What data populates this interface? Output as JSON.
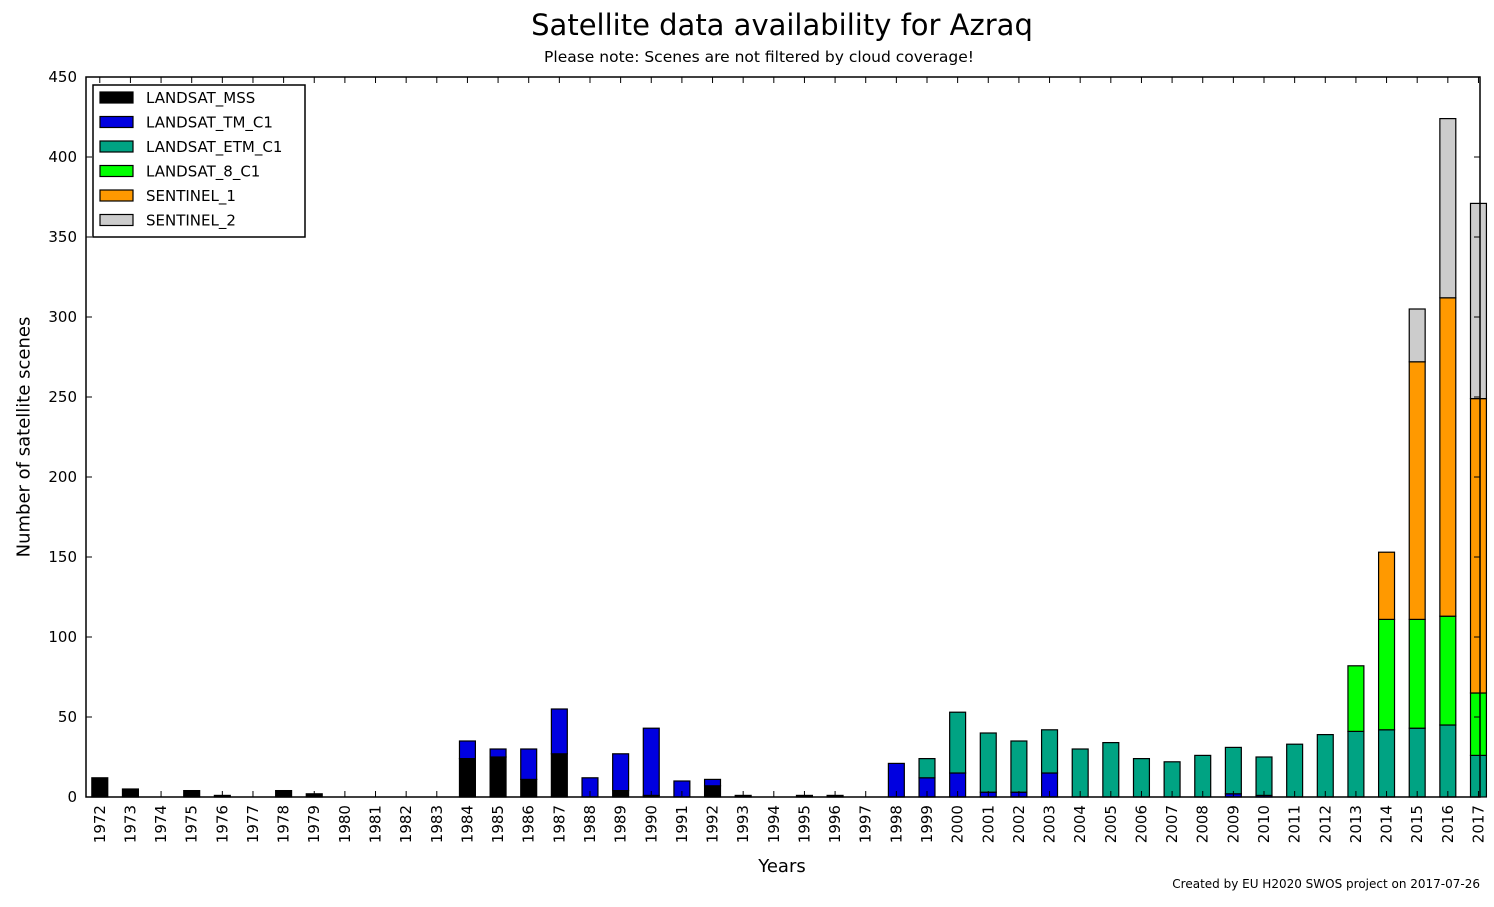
{
  "title": "Satellite data availability for Azraq",
  "subtitle": "Please note: Scenes are not filtered by cloud coverage!",
  "credit": "Created by EU H2020 SWOS project on 2017-07-26",
  "chart_data": {
    "type": "bar",
    "stacked": true,
    "title": "Satellite data availability for Azraq",
    "subtitle": "Please note: Scenes are not filtered by cloud coverage!",
    "xlabel": "Years",
    "ylabel": "Number of satellite scenes",
    "ylim": [
      0,
      450
    ],
    "yticks": [
      0,
      50,
      100,
      150,
      200,
      250,
      300,
      350,
      400,
      450
    ],
    "grid": false,
    "legend_position": "top-left",
    "categories": [
      "1972",
      "1973",
      "1974",
      "1975",
      "1976",
      "1977",
      "1978",
      "1979",
      "1980",
      "1981",
      "1982",
      "1983",
      "1984",
      "1985",
      "1986",
      "1987",
      "1988",
      "1989",
      "1990",
      "1991",
      "1992",
      "1993",
      "1994",
      "1995",
      "1996",
      "1997",
      "1998",
      "1999",
      "2000",
      "2001",
      "2002",
      "2003",
      "2004",
      "2005",
      "2006",
      "2007",
      "2008",
      "2009",
      "2010",
      "2011",
      "2012",
      "2013",
      "2014",
      "2015",
      "2016",
      "2017"
    ],
    "series": [
      {
        "name": "LANDSAT_MSS",
        "color": "#000000",
        "values": [
          12,
          5,
          0,
          4,
          1,
          0,
          4,
          2,
          0,
          0,
          0,
          0,
          24,
          25,
          11,
          27,
          0,
          4,
          1,
          0,
          7,
          1,
          0,
          1,
          1,
          0,
          0,
          0,
          0,
          0,
          0,
          0,
          0,
          0,
          0,
          0,
          0,
          0,
          0,
          0,
          0,
          0,
          0,
          0,
          0,
          0
        ]
      },
      {
        "name": "LANDSAT_TM_C1",
        "color": "#0000e0",
        "values": [
          0,
          0,
          0,
          0,
          0,
          0,
          0,
          0,
          0,
          0,
          0,
          0,
          11,
          5,
          19,
          28,
          12,
          23,
          42,
          10,
          4,
          0,
          0,
          0,
          0,
          0,
          21,
          12,
          15,
          3,
          3,
          15,
          0,
          0,
          0,
          0,
          0,
          2,
          1,
          0,
          0,
          0,
          0,
          0,
          0,
          0
        ]
      },
      {
        "name": "LANDSAT_ETM_C1",
        "color": "#00a383",
        "values": [
          0,
          0,
          0,
          0,
          0,
          0,
          0,
          0,
          0,
          0,
          0,
          0,
          0,
          0,
          0,
          0,
          0,
          0,
          0,
          0,
          0,
          0,
          0,
          0,
          0,
          0,
          0,
          12,
          38,
          37,
          32,
          27,
          30,
          34,
          24,
          22,
          26,
          29,
          24,
          33,
          39,
          41,
          42,
          43,
          45,
          26
        ]
      },
      {
        "name": "LANDSAT_8_C1",
        "color": "#00ff00",
        "values": [
          0,
          0,
          0,
          0,
          0,
          0,
          0,
          0,
          0,
          0,
          0,
          0,
          0,
          0,
          0,
          0,
          0,
          0,
          0,
          0,
          0,
          0,
          0,
          0,
          0,
          0,
          0,
          0,
          0,
          0,
          0,
          0,
          0,
          0,
          0,
          0,
          0,
          0,
          0,
          0,
          0,
          41,
          69,
          68,
          68,
          39
        ]
      },
      {
        "name": "SENTINEL_1",
        "color": "#ff9900",
        "values": [
          0,
          0,
          0,
          0,
          0,
          0,
          0,
          0,
          0,
          0,
          0,
          0,
          0,
          0,
          0,
          0,
          0,
          0,
          0,
          0,
          0,
          0,
          0,
          0,
          0,
          0,
          0,
          0,
          0,
          0,
          0,
          0,
          0,
          0,
          0,
          0,
          0,
          0,
          0,
          0,
          0,
          0,
          42,
          161,
          199,
          184
        ]
      },
      {
        "name": "SENTINEL_2",
        "color": "#cccccc",
        "values": [
          0,
          0,
          0,
          0,
          0,
          0,
          0,
          0,
          0,
          0,
          0,
          0,
          0,
          0,
          0,
          0,
          0,
          0,
          0,
          0,
          0,
          0,
          0,
          0,
          0,
          0,
          0,
          0,
          0,
          0,
          0,
          0,
          0,
          0,
          0,
          0,
          0,
          0,
          0,
          0,
          0,
          0,
          0,
          33,
          112,
          122
        ]
      }
    ]
  }
}
